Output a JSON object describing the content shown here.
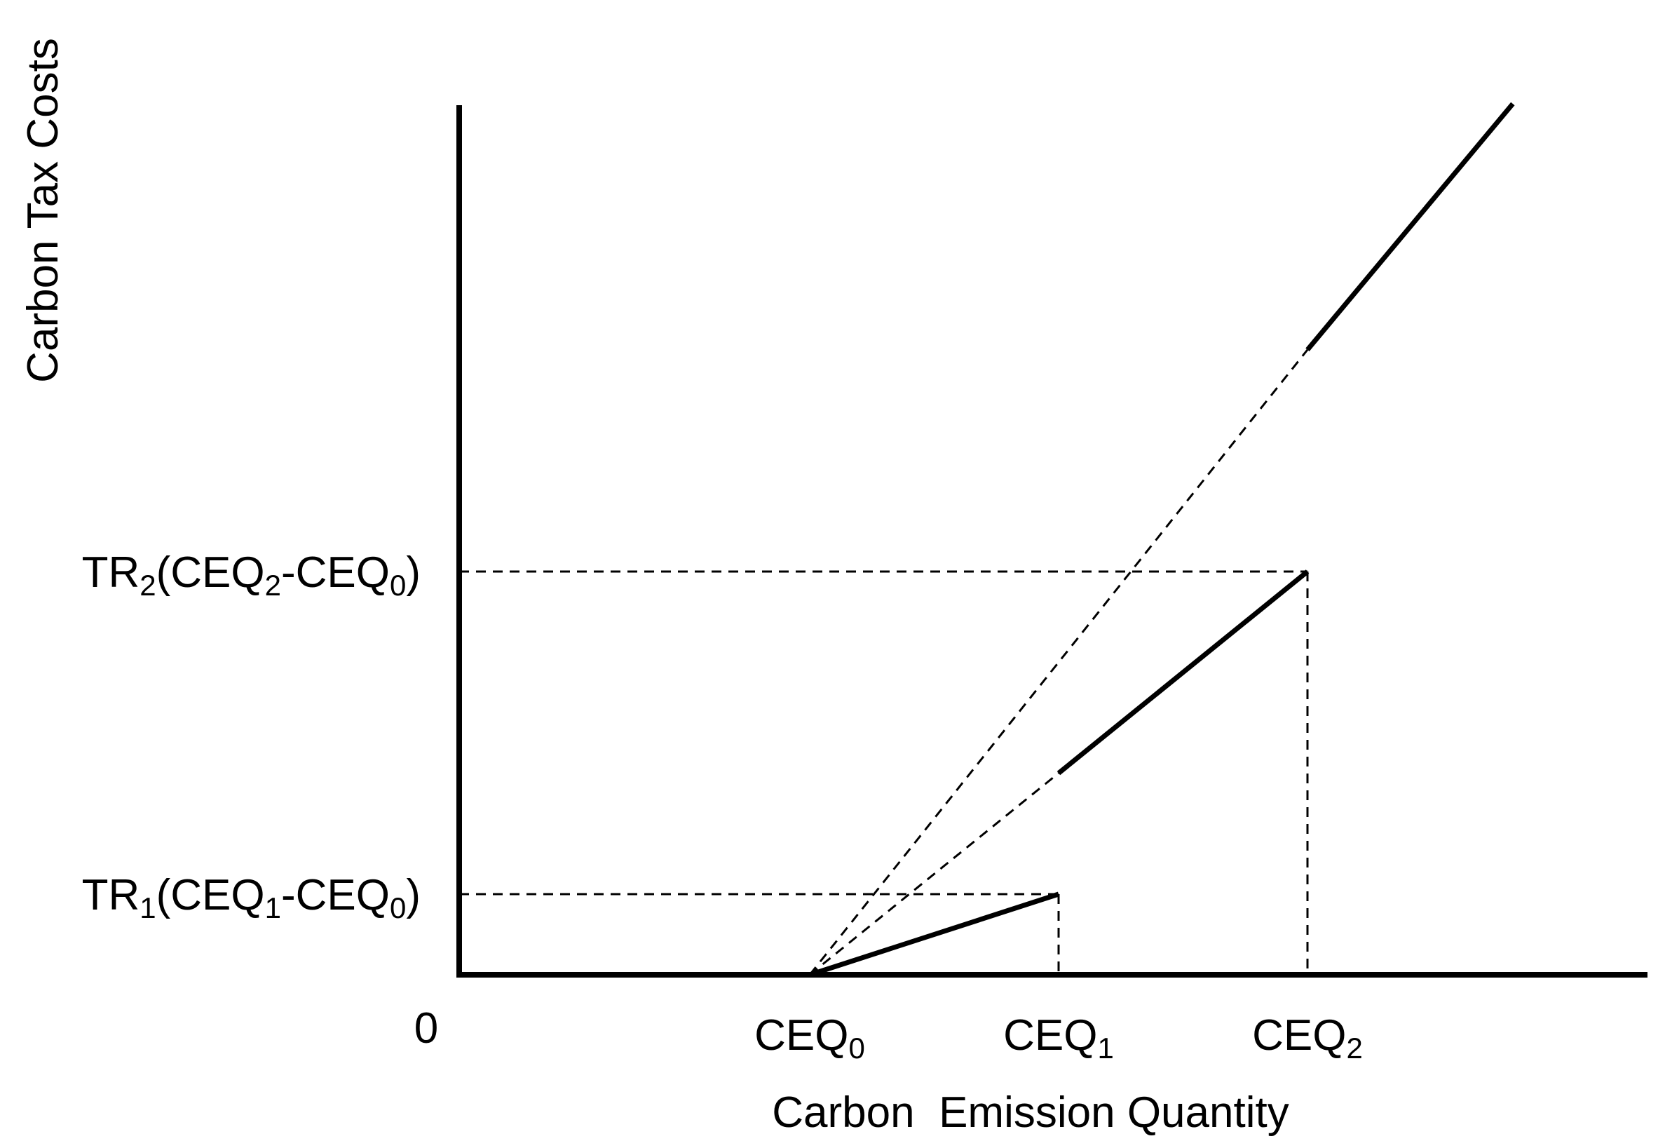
{
  "chart_data": {
    "type": "line",
    "title": "",
    "xlabel": "Carbon  Emission Quantity",
    "ylabel": "Carbon Tax Costs",
    "origin_label": "0",
    "xlim": [
      0,
      10
    ],
    "ylim": [
      0,
      11
    ],
    "x_ticks": [
      {
        "base": "CEQ",
        "sub": "0",
        "x": 3
      },
      {
        "base": "CEQ",
        "sub": "1",
        "x": 5
      },
      {
        "base": "CEQ",
        "sub": "2",
        "x": 7
      }
    ],
    "y_ticks": [
      {
        "parts": [
          {
            "t": "TR"
          },
          {
            "t": "1",
            "sub": true
          },
          {
            "t": "(CEQ"
          },
          {
            "t": "1",
            "sub": true
          },
          {
            "t": "-CEQ"
          },
          {
            "t": "0",
            "sub": true
          },
          {
            "t": ")"
          }
        ],
        "y": 1
      },
      {
        "parts": [
          {
            "t": "TR"
          },
          {
            "t": "2",
            "sub": true
          },
          {
            "t": "(CEQ"
          },
          {
            "t": "2",
            "sub": true
          },
          {
            "t": "-CEQ"
          },
          {
            "t": "0",
            "sub": true
          },
          {
            "t": ")"
          }
        ],
        "y": 5
      }
    ],
    "solid_segments": [
      {
        "x1": 3,
        "y1": 0,
        "x2": 5,
        "y2": 1
      },
      {
        "x1": 5,
        "y1": 2.5,
        "x2": 7,
        "y2": 5
      },
      {
        "x1": 7,
        "y1": 7.75,
        "x2": 8.65,
        "y2": 10.8
      }
    ],
    "dashed_segments": [
      {
        "x1": 3,
        "y1": 0,
        "x2": 5,
        "y2": 2.5
      },
      {
        "x1": 3,
        "y1": 0,
        "x2": 7,
        "y2": 7.75
      },
      {
        "x1": 0,
        "y1": 1,
        "x2": 5,
        "y2": 1
      },
      {
        "x1": 5,
        "y1": 1,
        "x2": 5,
        "y2": 0
      },
      {
        "x1": 0,
        "y1": 5,
        "x2": 7,
        "y2": 5
      },
      {
        "x1": 7,
        "y1": 5,
        "x2": 7,
        "y2": 0
      }
    ]
  }
}
